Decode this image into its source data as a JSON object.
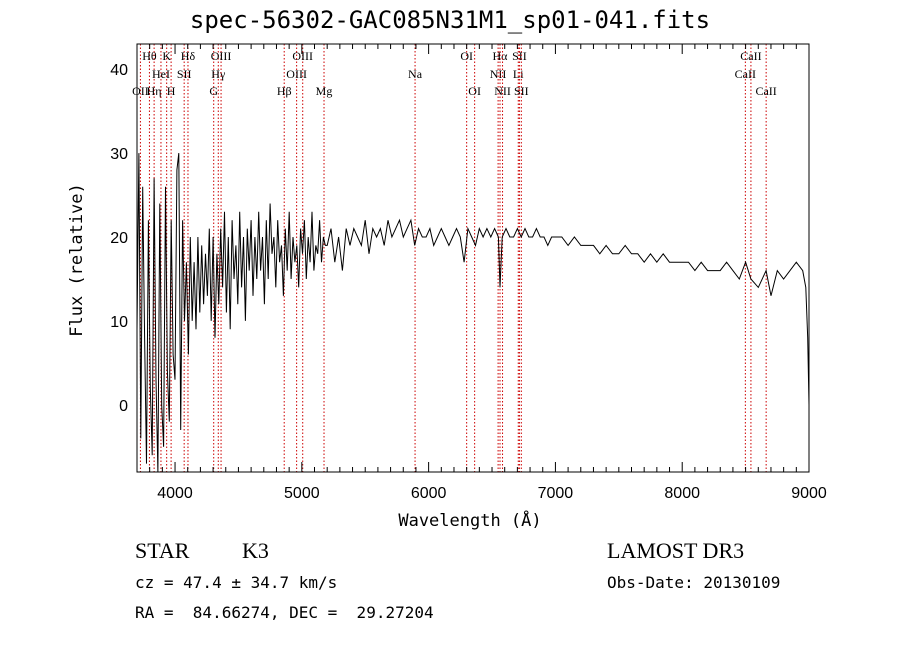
{
  "chart_data": {
    "type": "line",
    "title": "spec-56302-GAC085N31M1_sp01-041.fits",
    "xlabel": "Wavelength (Å)",
    "ylabel": "Flux (relative)",
    "xlim": [
      3700,
      9000
    ],
    "ylim": [
      -8,
      43
    ],
    "xticks": [
      4000,
      5000,
      6000,
      7000,
      8000,
      9000
    ],
    "yticks": [
      0,
      10,
      20,
      30,
      40
    ],
    "series": [
      {
        "name": "flux",
        "x": [
          3700,
          3715,
          3730,
          3745,
          3760,
          3775,
          3790,
          3805,
          3820,
          3835,
          3850,
          3865,
          3880,
          3895,
          3910,
          3925,
          3940,
          3955,
          3970,
          3985,
          4000,
          4015,
          4030,
          4045,
          4060,
          4075,
          4090,
          4105,
          4120,
          4135,
          4150,
          4165,
          4180,
          4195,
          4210,
          4225,
          4240,
          4255,
          4270,
          4285,
          4300,
          4315,
          4330,
          4345,
          4360,
          4375,
          4390,
          4405,
          4420,
          4435,
          4450,
          4465,
          4480,
          4495,
          4510,
          4525,
          4540,
          4555,
          4570,
          4585,
          4600,
          4615,
          4630,
          4645,
          4660,
          4675,
          4690,
          4705,
          4720,
          4735,
          4750,
          4765,
          4780,
          4795,
          4810,
          4825,
          4840,
          4855,
          4870,
          4885,
          4900,
          4915,
          4930,
          4945,
          4960,
          4975,
          4990,
          5005,
          5020,
          5035,
          5050,
          5065,
          5080,
          5095,
          5110,
          5125,
          5140,
          5155,
          5170,
          5185,
          5200,
          5230,
          5260,
          5290,
          5320,
          5350,
          5380,
          5410,
          5440,
          5470,
          5500,
          5530,
          5560,
          5590,
          5620,
          5650,
          5680,
          5710,
          5740,
          5770,
          5800,
          5830,
          5860,
          5890,
          5920,
          5950,
          5980,
          6010,
          6040,
          6070,
          6100,
          6130,
          6160,
          6190,
          6220,
          6250,
          6280,
          6310,
          6340,
          6370,
          6400,
          6430,
          6460,
          6490,
          6520,
          6550,
          6563,
          6580,
          6610,
          6640,
          6670,
          6700,
          6730,
          6760,
          6790,
          6820,
          6850,
          6880,
          6910,
          6940,
          6970,
          7000,
          7050,
          7100,
          7150,
          7200,
          7250,
          7300,
          7350,
          7400,
          7450,
          7500,
          7550,
          7600,
          7650,
          7700,
          7750,
          7800,
          7850,
          7900,
          7950,
          8000,
          8050,
          8100,
          8150,
          8200,
          8250,
          8300,
          8350,
          8400,
          8450,
          8500,
          8542,
          8600,
          8662,
          8700,
          8750,
          8800,
          8850,
          8900,
          8950,
          8975,
          8990,
          9000
        ],
        "y": [
          9,
          30,
          -4,
          26,
          8,
          -7,
          22,
          2,
          -6,
          27,
          3,
          -8,
          24,
          0,
          -5,
          26,
          4,
          -2,
          22,
          6,
          3,
          28,
          30,
          -3,
          22,
          10,
          17,
          6,
          20,
          10,
          17,
          9,
          20,
          11,
          19,
          12,
          18,
          13,
          21,
          10,
          20,
          8,
          18,
          12,
          21,
          14,
          23,
          11,
          20,
          9,
          22,
          15,
          19,
          12,
          23,
          14,
          20,
          10,
          21,
          16,
          22,
          13,
          20,
          15,
          23,
          16,
          20,
          12,
          22,
          15,
          24,
          18,
          20,
          14,
          22,
          17,
          19,
          13,
          21,
          16,
          23,
          15,
          20,
          17,
          19,
          14,
          21,
          18,
          22,
          15,
          20,
          17,
          23,
          16,
          19,
          18,
          22,
          17,
          20,
          19,
          19,
          21,
          17,
          20,
          16,
          21,
          19,
          21,
          20,
          19,
          22,
          18,
          21,
          20,
          21,
          19,
          22,
          20,
          21,
          22,
          20,
          21,
          22,
          19,
          21,
          20,
          20,
          21,
          19,
          20,
          21,
          20,
          19,
          20,
          21,
          20,
          17,
          21,
          20,
          19,
          21,
          20,
          21,
          20,
          21,
          20,
          14,
          20,
          21,
          20,
          20,
          21,
          20,
          21,
          20,
          20,
          21,
          20,
          20,
          19,
          20,
          20,
          20,
          19,
          20,
          19,
          19,
          19,
          18,
          19,
          18,
          18,
          19,
          18,
          18,
          17,
          18,
          17,
          18,
          17,
          17,
          17,
          17,
          16,
          17,
          16,
          16,
          16,
          17,
          16,
          15,
          17,
          15,
          14,
          16,
          13,
          16,
          15,
          16,
          17,
          16,
          14,
          8,
          0
        ]
      }
    ],
    "lines": [
      {
        "label": "OII",
        "wave": 3727,
        "row": 2
      },
      {
        "label": "Hθ",
        "wave": 3798,
        "row": 0
      },
      {
        "label": "Hη",
        "wave": 3835,
        "row": 2
      },
      {
        "label": "HeI",
        "wave": 3889,
        "row": 1
      },
      {
        "label": "K",
        "wave": 3934,
        "row": 0
      },
      {
        "label": "H",
        "wave": 3969,
        "row": 2
      },
      {
        "label": "SII",
        "wave": 4072,
        "row": 1
      },
      {
        "label": "Hδ",
        "wave": 4102,
        "row": 0
      },
      {
        "label": "G",
        "wave": 4305,
        "row": 2
      },
      {
        "label": "Hγ",
        "wave": 4341,
        "row": 1
      },
      {
        "label": "OIII",
        "wave": 4363,
        "row": 0
      },
      {
        "label": "Hβ",
        "wave": 4861,
        "row": 2
      },
      {
        "label": "OIII",
        "wave": 4959,
        "row": 1
      },
      {
        "label": "OIII",
        "wave": 5007,
        "row": 0
      },
      {
        "label": "Mg",
        "wave": 5175,
        "row": 2
      },
      {
        "label": "Na",
        "wave": 5893,
        "row": 1
      },
      {
        "label": "OI",
        "wave": 6300,
        "row": 0
      },
      {
        "label": "OI",
        "wave": 6363,
        "row": 2
      },
      {
        "label": "NII",
        "wave": 6548,
        "row": 1
      },
      {
        "label": "Hα",
        "wave": 6563,
        "row": 0
      },
      {
        "label": "NII",
        "wave": 6583,
        "row": 2
      },
      {
        "label": "Li",
        "wave": 6707,
        "row": 1
      },
      {
        "label": "SII",
        "wave": 6716,
        "row": 0
      },
      {
        "label": "SII",
        "wave": 6731,
        "row": 2
      },
      {
        "label": "CaII",
        "wave": 8498,
        "row": 1
      },
      {
        "label": "CaII",
        "wave": 8542,
        "row": 0
      },
      {
        "label": "CaII",
        "wave": 8662,
        "row": 2
      }
    ]
  },
  "info": {
    "class": "STAR",
    "subclass": "K3",
    "survey": "LAMOST DR3",
    "cz": "cz = 47.4 ± 34.7 km/s",
    "obs_date": "Obs-Date: 20130109",
    "coords": "RA =  84.66274, DEC =  29.27204"
  }
}
